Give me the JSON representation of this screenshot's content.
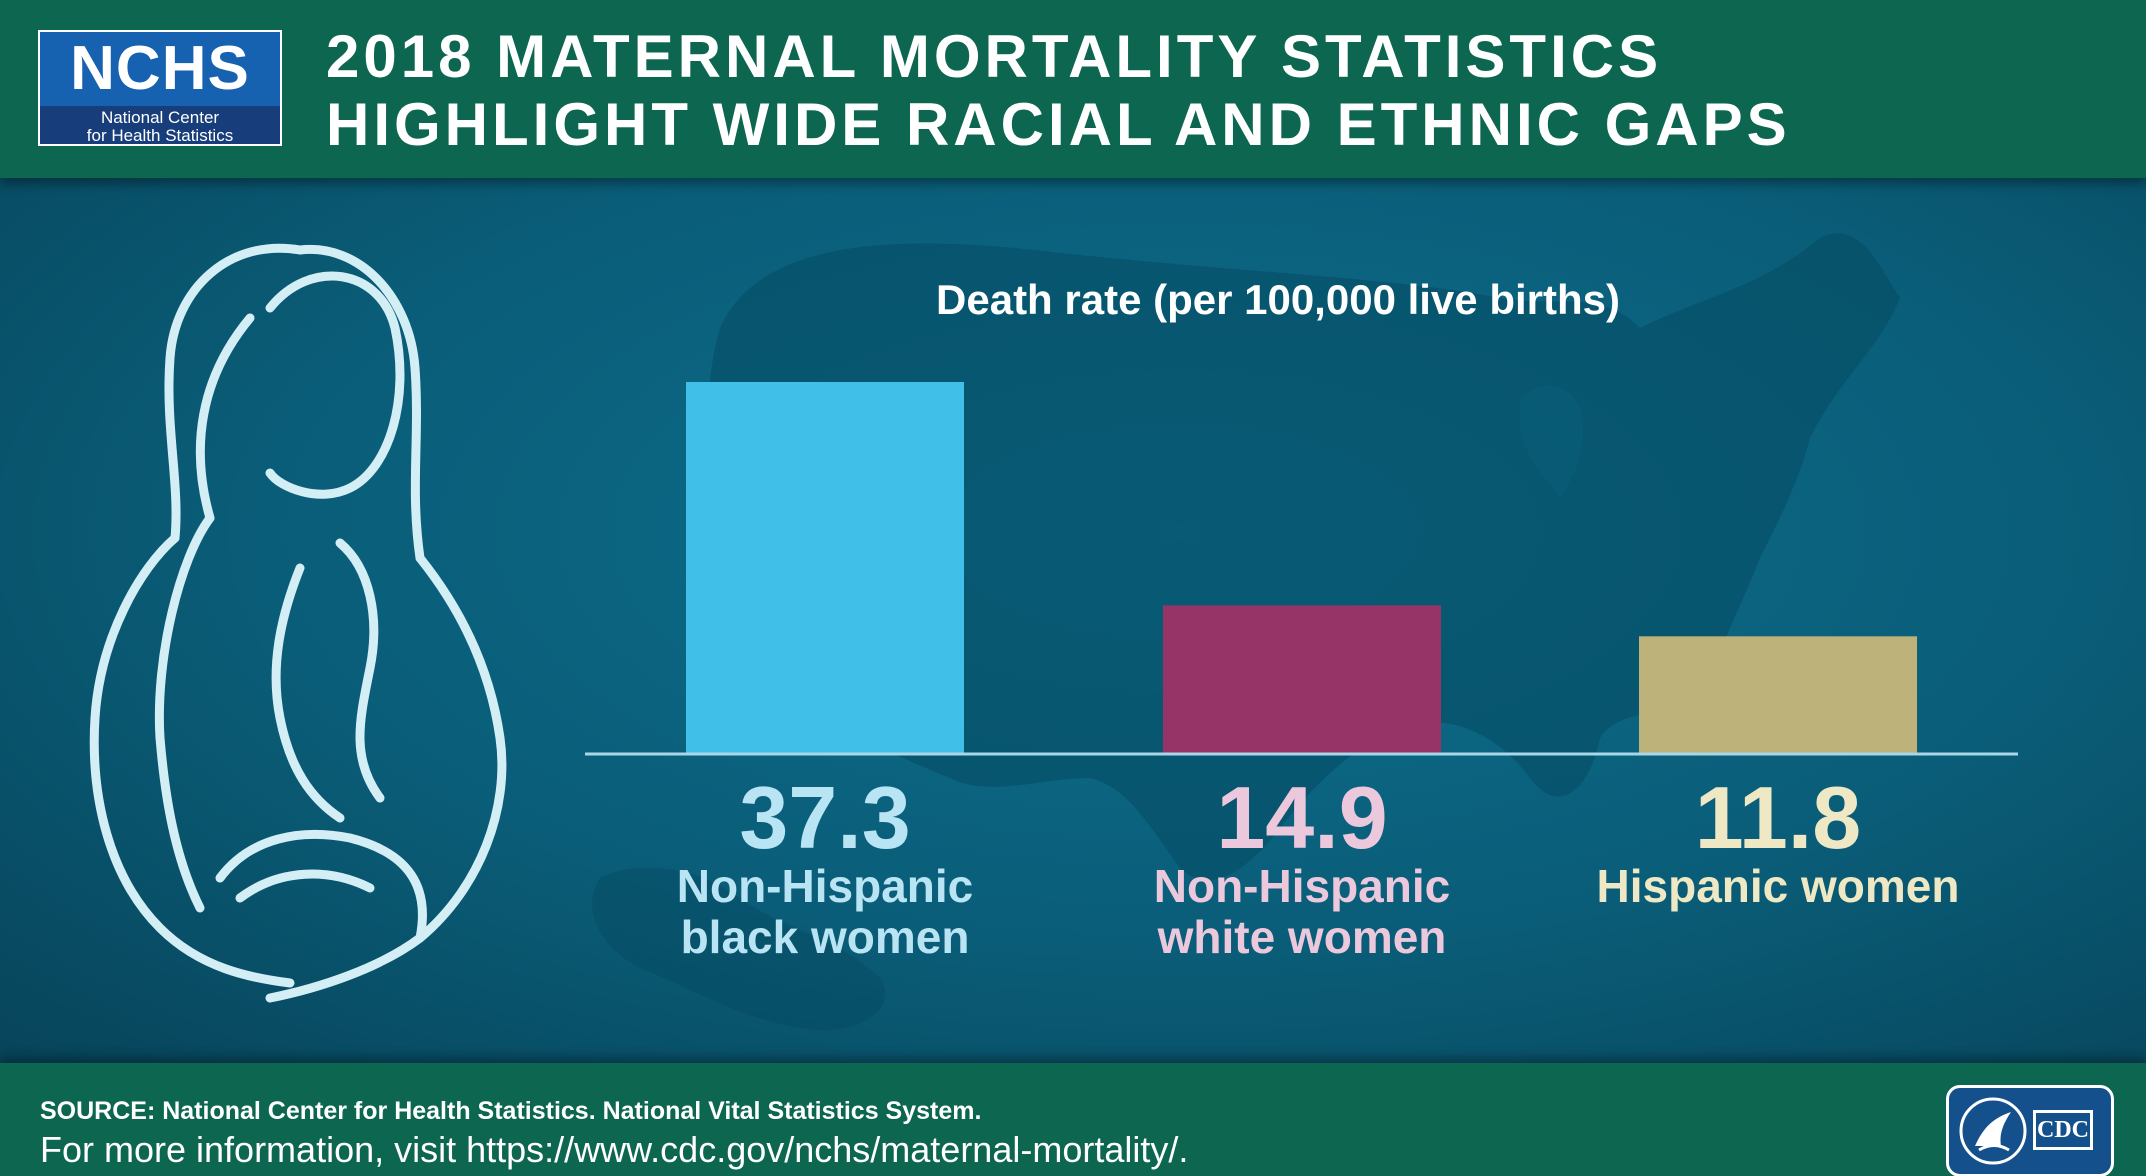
{
  "header": {
    "logo_acronym": "NCHS",
    "logo_line1": "National Center",
    "logo_line2": "for Health Statistics",
    "title_line1": "2018 MATERNAL MORTALITY STATISTICS",
    "title_line2": "HIGHLIGHT WIDE RACIAL AND ETHNIC GAPS"
  },
  "chart_data": {
    "type": "bar",
    "ylabel": "Death rate (per 100,000 live births)",
    "categories": [
      "Non-Hispanic black women",
      "Non-Hispanic white women",
      "Hispanic women"
    ],
    "category_lines": [
      [
        "Non-Hispanic",
        "black women"
      ],
      [
        "Non-Hispanic",
        "white women"
      ],
      [
        "Hispanic women"
      ]
    ],
    "values": [
      37.3,
      14.9,
      11.8
    ],
    "value_labels": [
      "37.3",
      "14.9",
      "11.8"
    ],
    "bar_colors": [
      "#40c0e8",
      "#963367",
      "#bcb27a"
    ],
    "value_colors": [
      "#b8e4f4",
      "#ecc8dc",
      "#eee8c4"
    ],
    "label_colors": [
      "#b8e4f4",
      "#ecc8dc",
      "#eee8c4"
    ],
    "ylim": [
      0,
      37.3
    ],
    "grid": false
  },
  "footer": {
    "source": "SOURCE: National Center for Health Statistics. National Vital Statistics System.",
    "more_info": "For more information, visit https://www.cdc.gov/nchs/maternal-mortality/.",
    "cdc_logo_text": "CDC"
  },
  "colors": {
    "header_bg": "#0c6650",
    "panel_bg": "#0a5d78",
    "axis_line": "#a9d7e8"
  },
  "icons": {
    "figure": "pregnant-woman-outline-icon",
    "background": "us-map-silhouette",
    "hhs_seal": "hhs-eagle-seal-icon"
  }
}
